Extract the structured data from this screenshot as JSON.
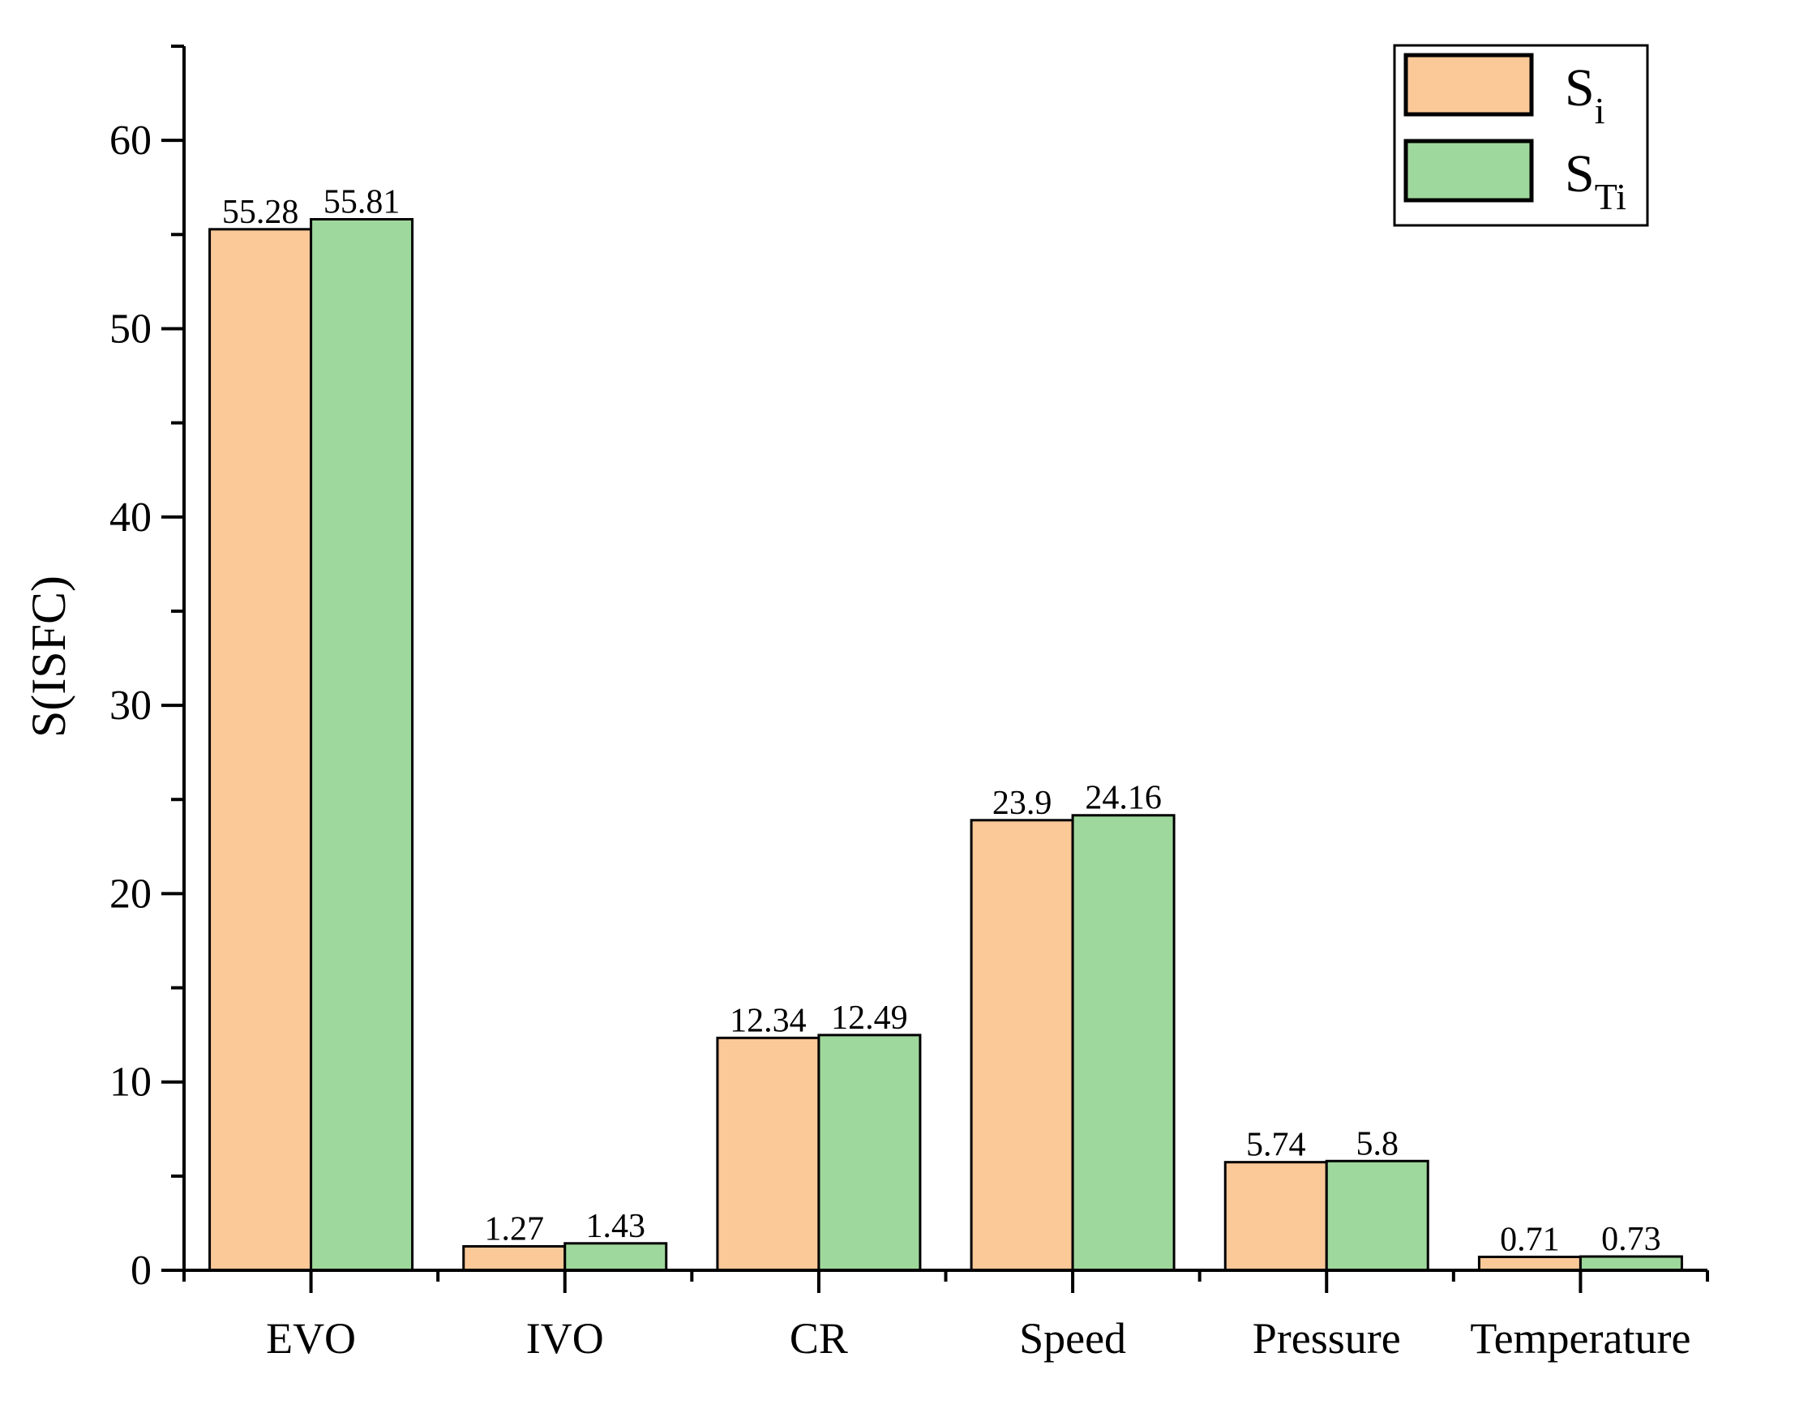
{
  "chart_data": {
    "type": "bar",
    "title": "",
    "xlabel": "",
    "ylabel": "S(ISFC)",
    "ylim": [
      0,
      65
    ],
    "yticks": [
      0,
      10,
      20,
      30,
      40,
      50,
      60
    ],
    "grid": false,
    "legend_position": "top-right",
    "categories": [
      "EVO",
      "IVO",
      "CR",
      "Speed",
      "Pressure",
      "Temperature"
    ],
    "series": [
      {
        "name": "S",
        "subscript": "i",
        "color": "#fbc898",
        "values": [
          55.28,
          1.27,
          12.34,
          23.9,
          5.74,
          0.71
        ],
        "labels": [
          "55.28",
          "1.27",
          "12.34",
          "23.9",
          "5.74",
          "0.71"
        ]
      },
      {
        "name": "S",
        "subscript": "Ti",
        "color": "#9fd89c",
        "values": [
          55.81,
          1.43,
          12.49,
          24.16,
          5.8,
          0.73
        ],
        "labels": [
          "55.81",
          "1.43",
          "12.49",
          "24.16",
          "5.8",
          "0.73"
        ]
      }
    ]
  }
}
